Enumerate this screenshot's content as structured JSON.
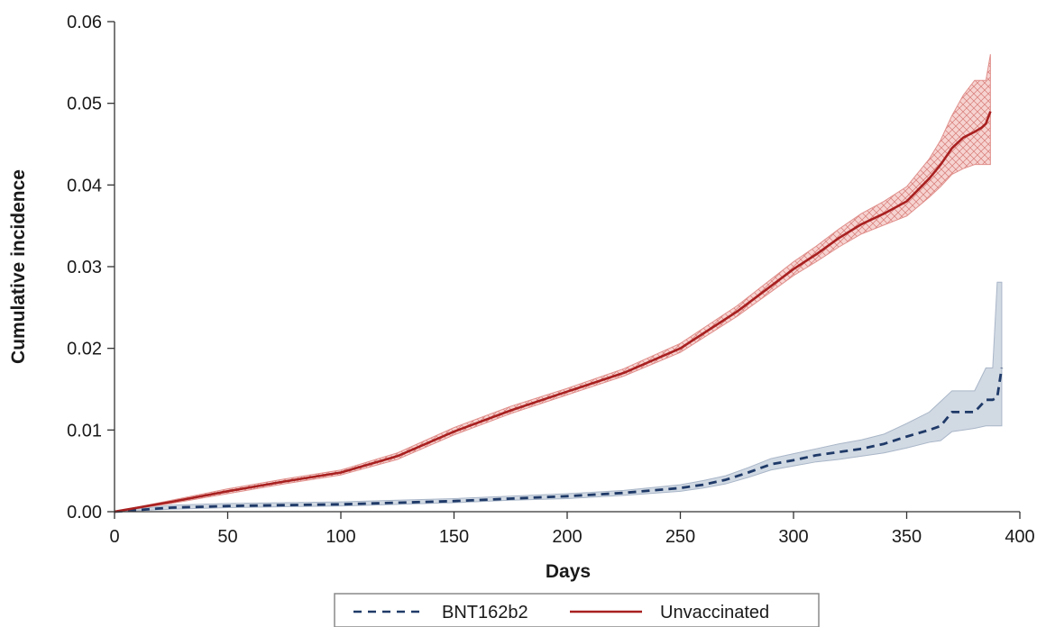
{
  "chart_data": {
    "type": "line",
    "title": "",
    "xlabel": "Days",
    "ylabel": "Cumulative incidence",
    "xlim": [
      0,
      400
    ],
    "ylim": [
      0,
      0.06
    ],
    "x_ticks": [
      0,
      50,
      100,
      150,
      200,
      250,
      300,
      350,
      400
    ],
    "y_ticks": [
      0,
      0.01,
      0.02,
      0.03,
      0.04,
      0.05,
      0.06
    ],
    "y_tick_labels": [
      "0.00",
      "0.01",
      "0.02",
      "0.03",
      "0.04",
      "0.05",
      "0.06"
    ],
    "x_tick_labels": [
      "0",
      "50",
      "100",
      "150",
      "200",
      "250",
      "300",
      "350",
      "400"
    ],
    "grid": false,
    "legend_position": "bottom",
    "series": [
      {
        "name": "BNT162b2",
        "color": "#1f3a68",
        "band_color": "#c9d2de",
        "line_style": "dashed",
        "x": [
          0,
          25,
          50,
          75,
          100,
          125,
          150,
          175,
          200,
          225,
          250,
          260,
          270,
          280,
          290,
          300,
          310,
          320,
          330,
          340,
          350,
          360,
          365,
          370,
          375,
          380,
          385,
          388,
          390,
          392
        ],
        "y": [
          0,
          0.0005,
          0.0007,
          0.0008,
          0.0009,
          0.0011,
          0.0013,
          0.0016,
          0.0019,
          0.0023,
          0.0029,
          0.0033,
          0.0039,
          0.0048,
          0.0058,
          0.0063,
          0.0069,
          0.0073,
          0.0077,
          0.0083,
          0.0092,
          0.01,
          0.0105,
          0.0122,
          0.0122,
          0.0122,
          0.0137,
          0.0137,
          0.014,
          0.0176
        ],
        "lower": [
          0,
          0.0003,
          0.0005,
          0.0006,
          0.0007,
          0.0009,
          0.0011,
          0.0014,
          0.0016,
          0.002,
          0.0025,
          0.0029,
          0.0034,
          0.0042,
          0.0051,
          0.0056,
          0.0061,
          0.0064,
          0.0068,
          0.0072,
          0.0078,
          0.0085,
          0.0087,
          0.0098,
          0.01,
          0.0102,
          0.0105,
          0.0105,
          0.0105,
          0.0105
        ],
        "upper": [
          0,
          0.0008,
          0.001,
          0.0011,
          0.0012,
          0.0014,
          0.0016,
          0.0019,
          0.0022,
          0.0026,
          0.0033,
          0.0038,
          0.0044,
          0.0054,
          0.0065,
          0.0071,
          0.0077,
          0.0083,
          0.0088,
          0.0095,
          0.0108,
          0.0122,
          0.0135,
          0.0148,
          0.0148,
          0.0148,
          0.0176,
          0.0176,
          0.0281,
          0.0281
        ]
      },
      {
        "name": "Unvaccinated",
        "color": "#a82020",
        "band_color": "#f2c3c0",
        "line_style": "solid",
        "x": [
          0,
          25,
          50,
          75,
          100,
          125,
          150,
          175,
          200,
          225,
          250,
          275,
          300,
          310,
          320,
          330,
          340,
          350,
          360,
          365,
          370,
          375,
          380,
          383,
          385,
          387
        ],
        "y": [
          0,
          0.0012,
          0.0025,
          0.0037,
          0.0048,
          0.0068,
          0.0098,
          0.0124,
          0.0147,
          0.017,
          0.02,
          0.0245,
          0.0297,
          0.0315,
          0.0335,
          0.0352,
          0.0365,
          0.038,
          0.0408,
          0.0425,
          0.0445,
          0.0458,
          0.0465,
          0.047,
          0.0475,
          0.049
        ],
        "lower": [
          0,
          0.001,
          0.0022,
          0.0034,
          0.0045,
          0.0064,
          0.0094,
          0.012,
          0.0143,
          0.0166,
          0.0195,
          0.0239,
          0.0289,
          0.0306,
          0.0324,
          0.034,
          0.0351,
          0.0362,
          0.0385,
          0.0398,
          0.0413,
          0.042,
          0.0425,
          0.0425,
          0.0425,
          0.0425
        ],
        "upper": [
          0,
          0.0014,
          0.0028,
          0.004,
          0.0051,
          0.0072,
          0.0103,
          0.0129,
          0.0151,
          0.0175,
          0.0206,
          0.0252,
          0.0306,
          0.0325,
          0.0346,
          0.0365,
          0.038,
          0.0398,
          0.0432,
          0.0455,
          0.0485,
          0.051,
          0.0528,
          0.0528,
          0.0528,
          0.056
        ]
      }
    ]
  },
  "legend": {
    "items": [
      "BNT162b2",
      "Unvaccinated"
    ]
  }
}
